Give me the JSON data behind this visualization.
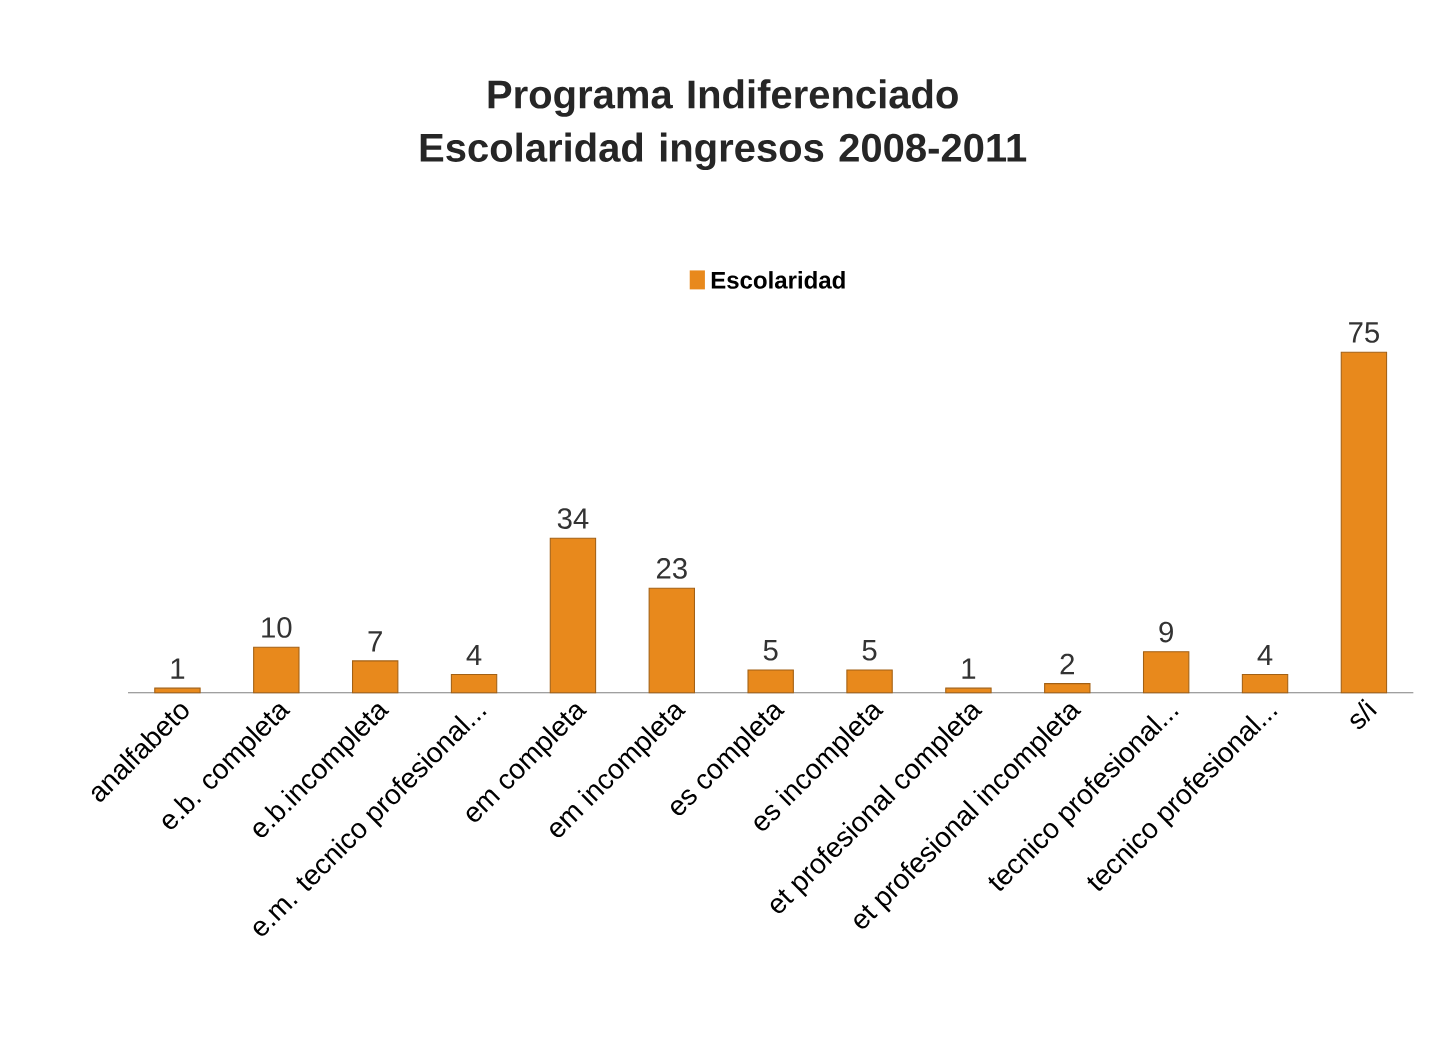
{
  "chart_data": {
    "type": "bar",
    "title": "Programa Indiferenciado\nEscolaridad ingresos 2008-2011",
    "categories": [
      "analfabeto",
      "e.b. completa",
      "e.b.incompleta",
      "e.m. tecnico profesional...",
      "em completa",
      "em incompleta",
      "es completa",
      "es incompleta",
      "et profesional completa",
      "et profesional incompleta",
      "tecnico profesional...",
      "tecnico profesional...",
      "s/i"
    ],
    "series": [
      {
        "name": "Escolaridad",
        "color": "#e8891c",
        "values": [
          1,
          10,
          7,
          4,
          34,
          23,
          5,
          5,
          1,
          2,
          9,
          4,
          75
        ]
      }
    ],
    "data_labels": true,
    "legend": "top"
  }
}
